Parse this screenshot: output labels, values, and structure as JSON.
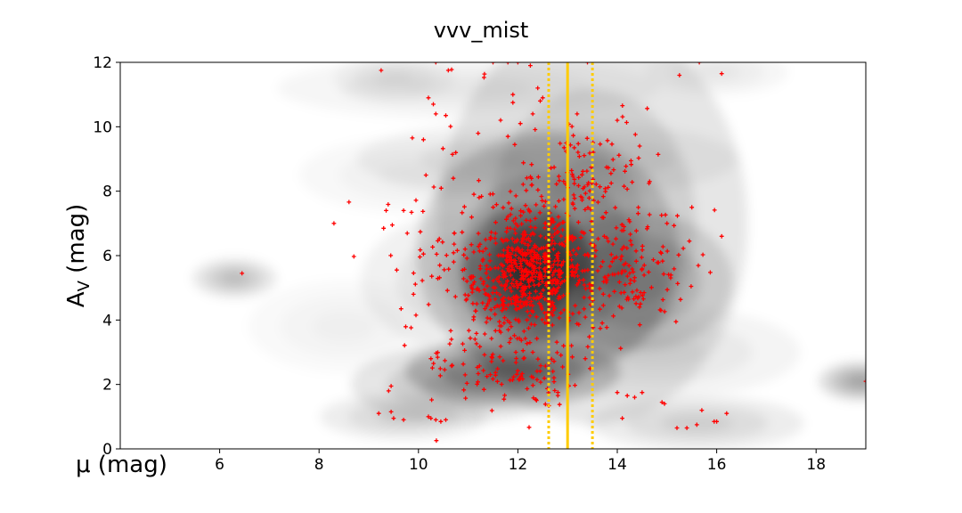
{
  "chart_data": {
    "type": "scatter",
    "title": "vvv_mist",
    "xlabel": "μ (mag)",
    "ylabel": {
      "main": "A",
      "sub": "V",
      "unit": " (mag)"
    },
    "xlim": [
      4,
      19
    ],
    "ylim": [
      0,
      12
    ],
    "xticks": [
      6,
      8,
      10,
      12,
      14,
      16,
      18
    ],
    "yticks": [
      0,
      2,
      4,
      6,
      8,
      10,
      12
    ],
    "grid": false,
    "colors": {
      "points": "#ff0000",
      "lines": "#ffcc00",
      "density": "#000000"
    },
    "vertical_lines": [
      {
        "x": 13.0,
        "style": "solid"
      },
      {
        "x": 12.62,
        "style": "dotted"
      },
      {
        "x": 13.5,
        "style": "dotted"
      }
    ],
    "density_blobs": [
      {
        "x": 12.2,
        "y": 5.4,
        "sx": 0.55,
        "sy": 0.9,
        "a": 0.95
      },
      {
        "x": 12.6,
        "y": 6.0,
        "sx": 1.1,
        "sy": 1.6,
        "a": 0.55
      },
      {
        "x": 13.5,
        "y": 7.0,
        "sx": 1.3,
        "sy": 2.6,
        "a": 0.35
      },
      {
        "x": 11.9,
        "y": 2.4,
        "sx": 0.9,
        "sy": 0.45,
        "a": 0.7
      },
      {
        "x": 10.8,
        "y": 2.0,
        "sx": 0.9,
        "sy": 0.5,
        "a": 0.35
      },
      {
        "x": 14.4,
        "y": 5.2,
        "sx": 0.8,
        "sy": 0.9,
        "a": 0.45
      },
      {
        "x": 11.0,
        "y": 5.2,
        "sx": 0.9,
        "sy": 0.9,
        "a": 0.2
      },
      {
        "x": 12.6,
        "y": 9.0,
        "sx": 1.6,
        "sy": 0.5,
        "a": 0.18
      },
      {
        "x": 11.0,
        "y": 11.2,
        "sx": 1.6,
        "sy": 0.4,
        "a": 0.12
      },
      {
        "x": 6.3,
        "y": 5.3,
        "sx": 0.35,
        "sy": 0.25,
        "a": 0.35
      },
      {
        "x": 9.7,
        "y": 1.0,
        "sx": 0.7,
        "sy": 0.3,
        "a": 0.25
      },
      {
        "x": 15.6,
        "y": 0.8,
        "sx": 0.9,
        "sy": 0.35,
        "a": 0.25
      },
      {
        "x": 18.9,
        "y": 2.1,
        "sx": 0.35,
        "sy": 0.25,
        "a": 0.5
      },
      {
        "x": 9.5,
        "y": 11.5,
        "sx": 0.5,
        "sy": 0.3,
        "a": 0.15
      },
      {
        "x": 16.0,
        "y": 11.7,
        "sx": 0.6,
        "sy": 0.3,
        "a": 0.12
      },
      {
        "x": 14.8,
        "y": 3.0,
        "sx": 1.2,
        "sy": 0.6,
        "a": 0.15
      },
      {
        "x": 8.5,
        "y": 3.8,
        "sx": 0.8,
        "sy": 0.6,
        "a": 0.08
      },
      {
        "x": 10.0,
        "y": 8.5,
        "sx": 1.0,
        "sy": 0.5,
        "a": 0.1
      }
    ],
    "points_clusters": [
      {
        "x": 12.2,
        "y": 5.4,
        "sx": 0.55,
        "sy": 0.75,
        "n": 420
      },
      {
        "x": 12.8,
        "y": 6.3,
        "sx": 1.0,
        "sy": 1.4,
        "n": 230
      },
      {
        "x": 14.2,
        "y": 5.4,
        "sx": 0.7,
        "sy": 0.8,
        "n": 110
      },
      {
        "x": 11.8,
        "y": 2.3,
        "sx": 0.7,
        "sy": 0.5,
        "n": 90
      },
      {
        "x": 13.6,
        "y": 8.3,
        "sx": 0.6,
        "sy": 1.1,
        "n": 80
      },
      {
        "x": 10.8,
        "y": 5.5,
        "sx": 0.7,
        "sy": 1.2,
        "n": 60
      },
      {
        "x": 11.0,
        "y": 7.8,
        "sx": 1.4,
        "sy": 2.4,
        "n": 40
      },
      {
        "x": 12.0,
        "y": 3.7,
        "sx": 0.6,
        "sy": 0.6,
        "n": 50
      }
    ],
    "points_extra": [
      [
        6.45,
        5.45
      ],
      [
        8.3,
        7.0
      ],
      [
        9.25,
        11.75
      ],
      [
        9.3,
        6.85
      ],
      [
        9.35,
        7.4
      ],
      [
        9.7,
        7.4
      ],
      [
        9.45,
        1.95
      ],
      [
        9.4,
        1.8
      ],
      [
        9.2,
        1.1
      ],
      [
        9.45,
        1.15
      ],
      [
        9.7,
        0.9
      ],
      [
        9.5,
        0.95
      ],
      [
        10.2,
        1.0
      ],
      [
        10.35,
        0.9
      ],
      [
        10.45,
        0.85
      ],
      [
        10.25,
        0.95
      ],
      [
        10.35,
        12.0
      ],
      [
        10.6,
        11.75
      ],
      [
        10.2,
        10.9
      ],
      [
        10.3,
        10.7
      ],
      [
        10.55,
        10.35
      ],
      [
        10.35,
        10.4
      ],
      [
        10.1,
        9.6
      ],
      [
        11.5,
        12.0
      ],
      [
        11.8,
        12.0
      ],
      [
        12.0,
        12.0
      ],
      [
        12.25,
        11.9
      ],
      [
        12.4,
        11.2
      ],
      [
        11.9,
        11.0
      ],
      [
        11.9,
        10.75
      ],
      [
        12.05,
        10.1
      ],
      [
        12.3,
        10.4
      ],
      [
        12.45,
        10.8
      ],
      [
        12.5,
        10.9
      ],
      [
        11.2,
        9.8
      ],
      [
        11.8,
        9.7
      ],
      [
        14.0,
        10.2
      ],
      [
        14.45,
        9.4
      ],
      [
        14.65,
        8.3
      ],
      [
        15.0,
        7.0
      ],
      [
        15.5,
        7.5
      ],
      [
        15.45,
        6.45
      ],
      [
        16.1,
        6.6
      ],
      [
        15.25,
        11.6
      ],
      [
        16.1,
        11.65
      ],
      [
        15.65,
        12.0
      ],
      [
        13.4,
        12.0
      ],
      [
        14.0,
        1.75
      ],
      [
        14.2,
        1.65
      ],
      [
        14.35,
        1.6
      ],
      [
        14.5,
        1.75
      ],
      [
        14.9,
        1.45
      ],
      [
        14.95,
        1.4
      ],
      [
        14.1,
        0.95
      ],
      [
        15.2,
        0.65
      ],
      [
        15.4,
        0.65
      ],
      [
        15.6,
        0.75
      ],
      [
        15.95,
        0.85
      ],
      [
        16.2,
        1.1
      ],
      [
        15.7,
        1.2
      ],
      [
        19.0,
        2.1
      ],
      [
        10.15,
        8.5
      ],
      [
        10.7,
        8.4
      ],
      [
        10.75,
        9.2
      ],
      [
        9.65,
        4.35
      ],
      [
        9.9,
        4.8
      ],
      [
        9.95,
        4.15
      ],
      [
        10.1,
        6.05
      ],
      [
        10.25,
        2.8
      ],
      [
        10.55,
        0.9
      ],
      [
        16.0,
        0.85
      ]
    ]
  }
}
